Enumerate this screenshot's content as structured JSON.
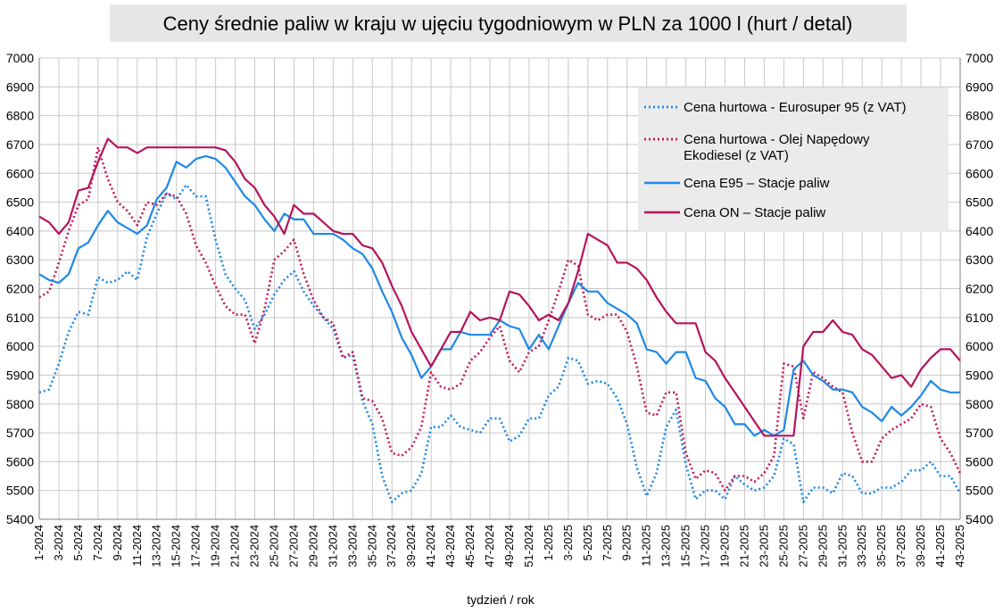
{
  "chart_data": {
    "type": "line",
    "title": "Ceny średnie paliw w kraju w ujęciu tygodniowym w PLN za 1000 l (hurt / detal)",
    "xlabel": "tydzień / rok",
    "ylim": [
      5400,
      7000
    ],
    "yticks": [
      5400,
      5500,
      5600,
      5700,
      5800,
      5900,
      6000,
      6100,
      6200,
      6300,
      6400,
      6500,
      6600,
      6700,
      6800,
      6900,
      7000
    ],
    "grid": true,
    "legend_position": "top-right",
    "x_tick_labels": [
      "1-2024",
      "3-2024",
      "5-2024",
      "7-2024",
      "9-2024",
      "11-2024",
      "13-2024",
      "15-2024",
      "17-2024",
      "19-2024",
      "21-2024",
      "23-2024",
      "25-2024",
      "27-2024",
      "29-2024",
      "31-2024",
      "33-2024",
      "35-2024",
      "37-2024",
      "39-2024",
      "41-2024",
      "43-2024",
      "45-2024",
      "47-2024",
      "49-2024",
      "51-2024",
      "1-2025",
      "3-2025",
      "5-2025",
      "7-2025",
      "9-2025",
      "11-2025",
      "13-2025",
      "15-2025",
      "17-2025",
      "19-2025",
      "21-2025",
      "23-2025",
      "25-2025",
      "27-2025",
      "29-2025",
      "31-2025",
      "33-2025",
      "35-2025",
      "37-2025",
      "39-2025",
      "41-2025",
      "43-2025"
    ],
    "series": [
      {
        "name": "Cena hurtowa  - Eurosuper 95 (z VAT)",
        "color": "#1e88e5",
        "style": "dotted",
        "values": [
          5840,
          5850,
          5940,
          6050,
          6120,
          6110,
          6240,
          6220,
          6230,
          6260,
          6230,
          6380,
          6460,
          6530,
          6510,
          6560,
          6520,
          6520,
          6370,
          6250,
          6200,
          6160,
          6060,
          6110,
          6180,
          6230,
          6260,
          6190,
          6140,
          6100,
          6060,
          5960,
          5970,
          5810,
          5730,
          5550,
          5460,
          5490,
          5500,
          5560,
          5720,
          5720,
          5760,
          5720,
          5710,
          5700,
          5750,
          5750,
          5670,
          5690,
          5750,
          5750,
          5830,
          5860,
          5960,
          5950,
          5870,
          5880,
          5870,
          5820,
          5730,
          5580,
          5480,
          5560,
          5720,
          5780,
          5590,
          5470,
          5500,
          5500,
          5470,
          5550,
          5520,
          5500,
          5510,
          5550,
          5680,
          5660,
          5460,
          5510,
          5510,
          5490,
          5560,
          5550,
          5490,
          5490,
          5510,
          5510,
          5530,
          5570,
          5570,
          5600,
          5550,
          5550,
          5490
        ]
      },
      {
        "name": "Cena hurtowa - Olej Napędowy Ekodiesel (z VAT)",
        "color": "#c2185b",
        "style": "dotted",
        "values": [
          6170,
          6190,
          6290,
          6400,
          6490,
          6510,
          6690,
          6580,
          6500,
          6470,
          6420,
          6500,
          6490,
          6530,
          6520,
          6460,
          6350,
          6290,
          6210,
          6140,
          6110,
          6110,
          6010,
          6130,
          6300,
          6330,
          6370,
          6250,
          6160,
          6100,
          6080,
          5960,
          5980,
          5820,
          5810,
          5750,
          5630,
          5620,
          5650,
          5720,
          5910,
          5860,
          5850,
          5870,
          5950,
          5980,
          6030,
          6070,
          5950,
          5910,
          5980,
          6000,
          6090,
          6190,
          6300,
          6280,
          6110,
          6090,
          6110,
          6110,
          6050,
          5930,
          5770,
          5760,
          5840,
          5840,
          5630,
          5540,
          5570,
          5560,
          5500,
          5550,
          5550,
          5530,
          5560,
          5620,
          5940,
          5930,
          5750,
          5910,
          5890,
          5860,
          5840,
          5700,
          5600,
          5600,
          5680,
          5710,
          5730,
          5750,
          5800,
          5790,
          5680,
          5630,
          5560
        ]
      },
      {
        "name": "Cena E95 – Stacje paliw",
        "color": "#1e88e5",
        "style": "solid",
        "values": [
          6250,
          6230,
          6220,
          6250,
          6340,
          6360,
          6420,
          6470,
          6430,
          6410,
          6390,
          6420,
          6510,
          6550,
          6640,
          6620,
          6650,
          6660,
          6650,
          6620,
          6570,
          6520,
          6490,
          6440,
          6400,
          6460,
          6440,
          6440,
          6390,
          6390,
          6390,
          6370,
          6340,
          6320,
          6270,
          6190,
          6120,
          6030,
          5970,
          5890,
          5930,
          5990,
          5990,
          6050,
          6040,
          6040,
          6040,
          6090,
          6070,
          6060,
          5990,
          6040,
          5990,
          6070,
          6150,
          6220,
          6190,
          6190,
          6150,
          6130,
          6110,
          6080,
          5990,
          5980,
          5940,
          5980,
          5980,
          5890,
          5880,
          5820,
          5790,
          5730,
          5730,
          5690,
          5710,
          5690,
          5710,
          5920,
          5950,
          5900,
          5880,
          5850,
          5850,
          5840,
          5790,
          5770,
          5740,
          5790,
          5760,
          5790,
          5830,
          5880,
          5850,
          5840,
          5840
        ]
      },
      {
        "name": "Cena ON – Stacje paliw",
        "color": "#b5145b",
        "style": "solid",
        "values": [
          6450,
          6430,
          6390,
          6430,
          6540,
          6550,
          6640,
          6720,
          6690,
          6690,
          6670,
          6690,
          6690,
          6690,
          6690,
          6690,
          6690,
          6690,
          6690,
          6680,
          6640,
          6580,
          6550,
          6490,
          6450,
          6390,
          6490,
          6460,
          6460,
          6430,
          6400,
          6390,
          6390,
          6350,
          6340,
          6290,
          6210,
          6140,
          6050,
          5990,
          5930,
          5990,
          6050,
          6050,
          6120,
          6090,
          6100,
          6090,
          6190,
          6180,
          6140,
          6090,
          6110,
          6090,
          6150,
          6260,
          6390,
          6370,
          6350,
          6290,
          6290,
          6270,
          6230,
          6170,
          6120,
          6080,
          6080,
          6080,
          5980,
          5950,
          5890,
          5840,
          5790,
          5740,
          5690,
          5690,
          5690,
          5690,
          6000,
          6050,
          6050,
          6090,
          6050,
          6040,
          5990,
          5970,
          5930,
          5890,
          5900,
          5860,
          5920,
          5960,
          5990,
          5990,
          5950
        ]
      }
    ]
  }
}
